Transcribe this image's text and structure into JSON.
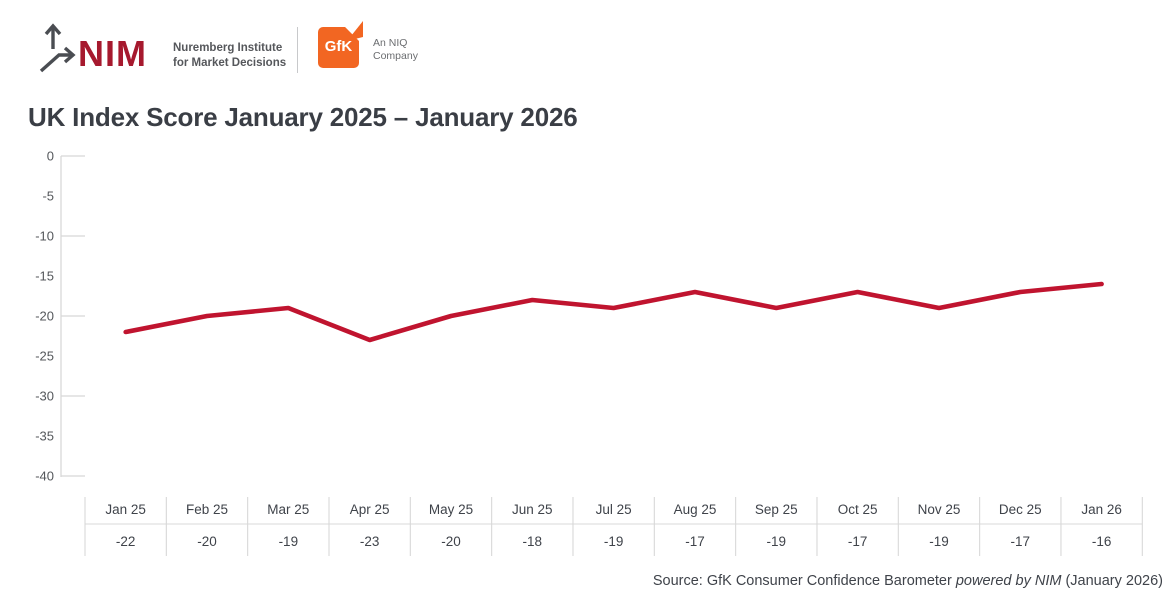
{
  "header": {
    "nim_logo": {
      "wordmark": "NIM",
      "tagline_line1": "Nuremberg Institute",
      "tagline_line2": "for Market Decisions"
    },
    "gfk_logo": {
      "wordmark": "GfK",
      "tagline_line1": "An NIQ",
      "tagline_line2": "Company"
    }
  },
  "title": "UK Index Score January 2025 – January 2026",
  "source": {
    "prefix": "Source: GfK Consumer Confidence Barometer ",
    "italic": "powered by NIM",
    "suffix": " (January 2026)"
  },
  "colors": {
    "line_red": "#C0142F",
    "nim_red": "#A6192E",
    "gfk_orange": "#F26622",
    "grid_gray": "#D8D8D8",
    "axis_label_gray": "#54575B",
    "table_text": "#3F434A",
    "title_text": "#3A3E45"
  },
  "chart_data": {
    "type": "line",
    "title": "UK Index Score January 2025 – January 2026",
    "categories": [
      "Jan 25",
      "Feb 25",
      "Mar 25",
      "Apr 25",
      "May 25",
      "Jun 25",
      "Jul 25",
      "Aug 25",
      "Sep 25",
      "Oct 25",
      "Nov 25",
      "Dec 25",
      "Jan 26"
    ],
    "values": [
      -22,
      -20,
      -19,
      -23,
      -20,
      -18,
      -19,
      -17,
      -19,
      -17,
      -19,
      -17,
      -16
    ],
    "value_labels": [
      "-22",
      "-20",
      "-19",
      "-23",
      "-20",
      "-18",
      "-19",
      "-17",
      "-19",
      "-17",
      "-19",
      "-17",
      "-16"
    ],
    "yticks": [
      0,
      -5,
      -10,
      -15,
      -20,
      -25,
      -30,
      -35,
      -40
    ],
    "ylim": [
      -40,
      0
    ],
    "xlabel": "",
    "ylabel": "",
    "legend": "none",
    "grid": "short stubs at major y ticks only",
    "series_color": "#C0142F"
  }
}
